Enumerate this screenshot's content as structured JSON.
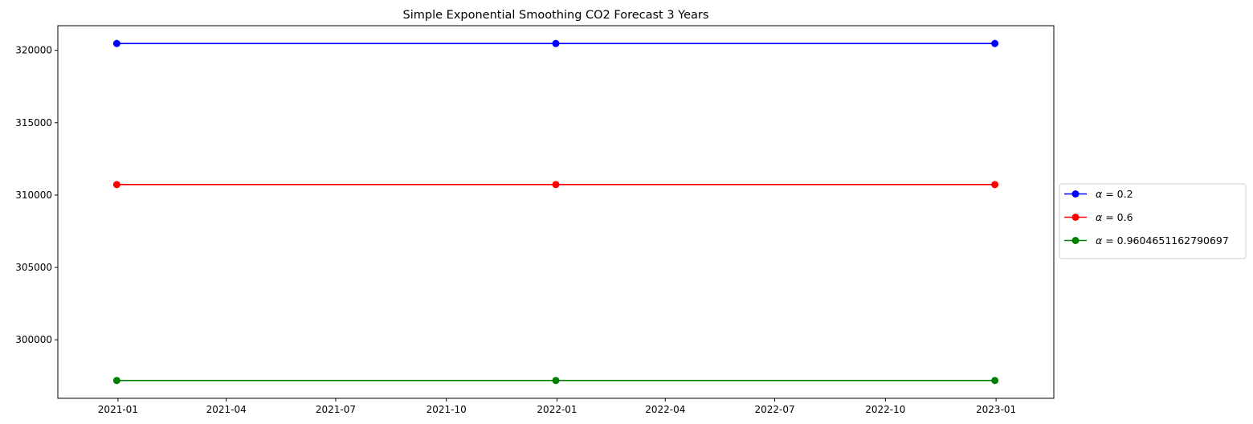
{
  "chart_data": {
    "type": "line",
    "title": "Simple Exponential Smoothing CO2 Forecast 3 Years",
    "xlabel": "",
    "ylabel": "",
    "x": [
      "2020-12-31",
      "2021-12-31",
      "2022-12-31"
    ],
    "xlim": [
      "2020-11-12",
      "2023-02-18"
    ],
    "x_ticks": [
      {
        "date": "2021-01-01",
        "label": "2021-01"
      },
      {
        "date": "2021-04-01",
        "label": "2021-04"
      },
      {
        "date": "2021-07-01",
        "label": "2021-07"
      },
      {
        "date": "2021-10-01",
        "label": "2021-10"
      },
      {
        "date": "2022-01-01",
        "label": "2022-01"
      },
      {
        "date": "2022-04-01",
        "label": "2022-04"
      },
      {
        "date": "2022-07-01",
        "label": "2022-07"
      },
      {
        "date": "2022-10-01",
        "label": "2022-10"
      },
      {
        "date": "2023-01-01",
        "label": "2023-01"
      }
    ],
    "ylim": [
      295957,
      321702
    ],
    "y_ticks": [
      {
        "value": 300000,
        "label": "300000"
      },
      {
        "value": 305000,
        "label": "305000"
      },
      {
        "value": 310000,
        "label": "310000"
      },
      {
        "value": 315000,
        "label": "315000"
      },
      {
        "value": 320000,
        "label": "320000"
      }
    ],
    "grid": false,
    "legend_position": "center-right-outside",
    "series": [
      {
        "name": "α = 0.2",
        "label_prefix": "α",
        "label_value": "= 0.2",
        "color": "#0000ff",
        "marker": "circle",
        "values": [
          320472,
          320472,
          320472
        ]
      },
      {
        "name": "α = 0.6",
        "label_prefix": "α",
        "label_value": "= 0.6",
        "color": "#ff0000",
        "marker": "circle",
        "values": [
          310725,
          310725,
          310725
        ]
      },
      {
        "name": "α = 0.9604651162790697",
        "label_prefix": "α",
        "label_value": "= 0.9604651162790697",
        "color": "#008000",
        "marker": "circle",
        "values": [
          297188,
          297188,
          297188
        ]
      }
    ]
  }
}
